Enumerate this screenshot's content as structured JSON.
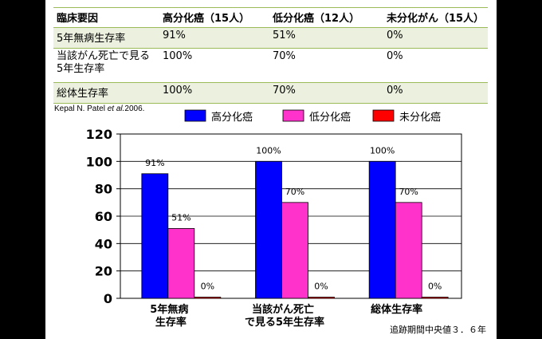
{
  "table": {
    "headers": [
      "臨床要因",
      "高分化癌（15人）",
      "低分化癌（12人）",
      "未分化がん（15人）"
    ],
    "rows": [
      {
        "label": "5年無病生存率",
        "cells": [
          "91%",
          "51%",
          "0%"
        ]
      },
      {
        "label": "当該がん死亡で見る5年生存率",
        "cells": [
          "100%",
          "70%",
          "0%"
        ]
      },
      {
        "label": "総体生存率",
        "cells": [
          "100%",
          "70%",
          "0%"
        ]
      }
    ]
  },
  "citation": {
    "authors": "Kepal N. Patel ",
    "etal": "et al.",
    "year": "2006."
  },
  "footnote": "追跡期間中央値３．６年",
  "chart_data": {
    "type": "bar",
    "categories": [
      "5年無病\n生存率",
      "当該がん死亡\nで見る5年生存率",
      "総体生存率"
    ],
    "series": [
      {
        "name": "高分化癌",
        "color": "#0000ff",
        "values": [
          91,
          100,
          100
        ],
        "labels": [
          "91%",
          "100%",
          "100%"
        ]
      },
      {
        "name": "低分化癌",
        "color": "#ff33cc",
        "values": [
          51,
          70,
          70
        ],
        "labels": [
          "51%",
          "70%",
          "70%"
        ]
      },
      {
        "name": "未分化癌",
        "color": "#ff0000",
        "values": [
          0,
          0,
          0
        ],
        "labels": [
          "0%",
          "0%",
          "0%"
        ]
      }
    ],
    "ylim": [
      0,
      120
    ],
    "yticks": [
      0,
      20,
      40,
      60,
      80,
      100,
      120
    ],
    "grid": true,
    "legend": "top"
  }
}
